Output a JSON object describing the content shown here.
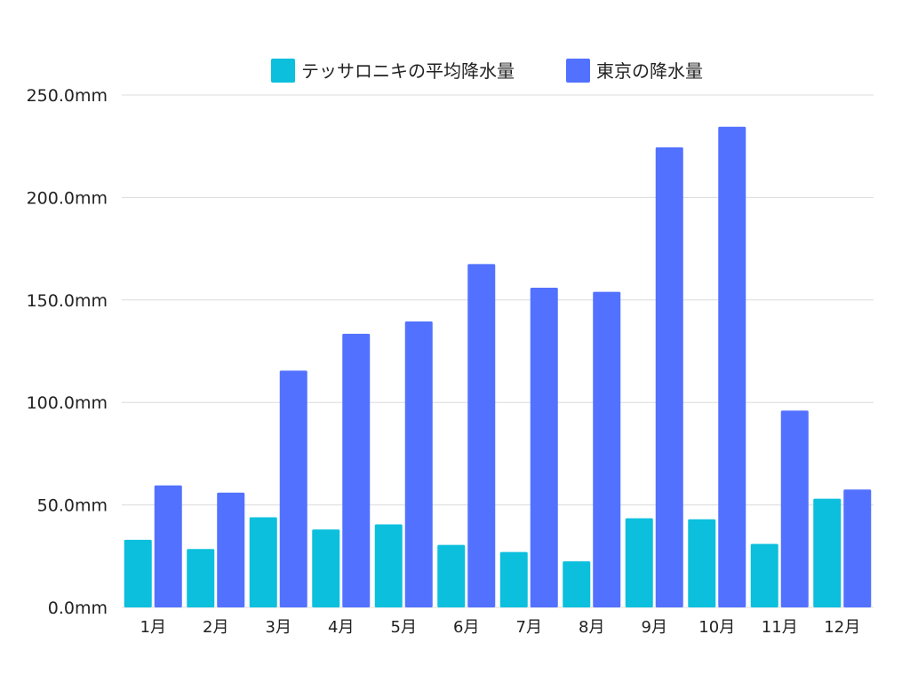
{
  "chart_data": {
    "type": "bar",
    "title": "",
    "xlabel": "",
    "ylabel": "",
    "categories": [
      "1月",
      "2月",
      "3月",
      "4月",
      "5月",
      "6月",
      "7月",
      "8月",
      "9月",
      "10月",
      "11月",
      "12月"
    ],
    "series": [
      {
        "name": "テッサロニキの平均降水量",
        "color": "#0bbfdd",
        "values": [
          33,
          28.5,
          44,
          38,
          40.5,
          30.5,
          27,
          22.5,
          43.5,
          43,
          31,
          53
        ]
      },
      {
        "name": "東京の降水量",
        "color": "#5271ff",
        "values": [
          59.5,
          56,
          115.5,
          133.5,
          139.5,
          167.5,
          156,
          154,
          224.5,
          234.5,
          96,
          57.5
        ]
      }
    ],
    "ylim": [
      0,
      250
    ],
    "yticks": [
      0,
      50,
      100,
      150,
      200,
      250
    ],
    "ytick_labels": [
      "0.0mm",
      "50.0mm",
      "100.0mm",
      "150.0mm",
      "200.0mm",
      "250.0mm"
    ],
    "grid": true,
    "legend_position": "top"
  }
}
